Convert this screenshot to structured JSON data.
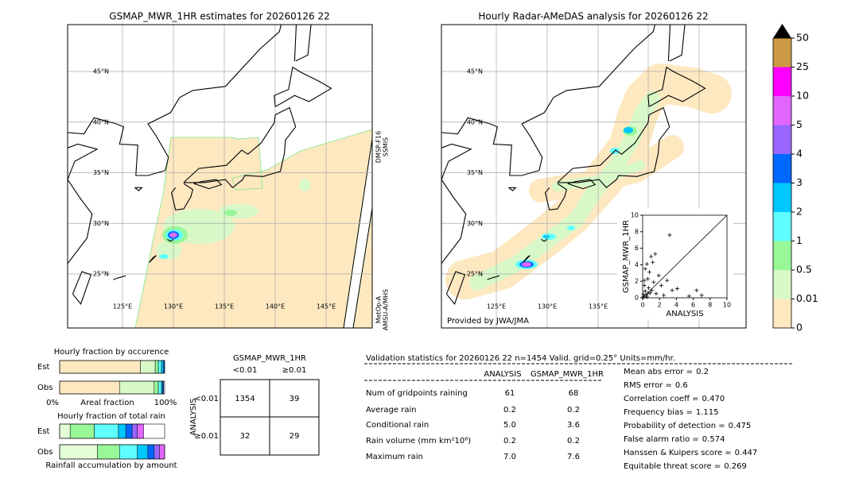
{
  "maps": [
    {
      "title": "GSMAP_MWR_1HR estimates for 20260126 22",
      "lat_labels": [
        "45°N",
        "40°N",
        "35°N",
        "30°N",
        "25°N"
      ],
      "lon_labels": [
        "125°E",
        "130°E",
        "135°E",
        "140°E",
        "145°E"
      ],
      "sensor_labels": [
        [
          "DMSP-F16",
          "SSMIS"
        ],
        [
          "MetOp-A",
          "AMSU-A/MHS"
        ]
      ]
    },
    {
      "title": "Hourly Radar-AMeDAS analysis for 20260126 22",
      "lat_labels": [
        "45°N",
        "40°N",
        "35°N",
        "30°N",
        "25°N"
      ],
      "lon_labels": [
        "125°E",
        "130°E",
        "135°E"
      ],
      "credit": "Provided by JWA/JMA"
    }
  ],
  "colorbar": {
    "levels": [
      0,
      0.01,
      0.5,
      1,
      2,
      3,
      4,
      5,
      10,
      25,
      50
    ],
    "colors": [
      "#fde8c0",
      "#d8f8c8",
      "#98f898",
      "#60ffff",
      "#00c8ff",
      "#0068ff",
      "#9966ff",
      "#e066ff",
      "#ff00ff",
      "#cc9944"
    ],
    "extend_color": "#000000"
  },
  "chart_data": [
    {
      "type": "scatter",
      "xlabel": "ANALYSIS",
      "ylabel": "GSMAP_MWR_1HR",
      "xlim": [
        0,
        10
      ],
      "ylim": [
        0,
        10
      ],
      "xticks": [
        0,
        2,
        4,
        6,
        8,
        10
      ],
      "yticks": [
        0,
        2,
        4,
        6,
        8,
        10
      ],
      "x": [
        3.2,
        1.0,
        1.5,
        0.5,
        1.2,
        0.3,
        0.8,
        1.9,
        0.2,
        0.6,
        1.3,
        2.2,
        2.9,
        4.1,
        3.5,
        6.4,
        7.0,
        5.5,
        1.6,
        2.5,
        0.1,
        0.3,
        0.5,
        0.7,
        0.9,
        0.2,
        0.4,
        1.1,
        0.1,
        0.6
      ],
      "y": [
        7.6,
        5.0,
        5.3,
        4.1,
        4.3,
        3.5,
        3.1,
        2.7,
        2.1,
        2.3,
        1.9,
        1.5,
        2.1,
        1.1,
        0.9,
        0.9,
        0.3,
        0.2,
        0.5,
        0.3,
        0.4,
        0.8,
        0.1,
        1.2,
        0.6,
        1.5,
        0.3,
        0.9,
        0.1,
        0.5
      ]
    },
    {
      "type": "bar",
      "title": "Hourly fraction by occurence",
      "xlabel": "Areal fraction",
      "categories": [
        "Est",
        "Obs"
      ],
      "xlim": [
        0,
        100
      ],
      "xticks": [
        {
          "value": 0,
          "label": "0%"
        },
        {
          "value": 100,
          "label": "100%"
        }
      ],
      "series": [
        {
          "color": "#fde8c0",
          "values": [
            77,
            57
          ]
        },
        {
          "color": "#d8f8c8",
          "values": [
            14,
            33
          ]
        },
        {
          "color": "#98f898",
          "values": [
            3,
            4
          ]
        },
        {
          "color": "#60ffff",
          "values": [
            3,
            3
          ]
        },
        {
          "color": "#00c8ff",
          "values": [
            2,
            1
          ]
        },
        {
          "color": "#0068ff",
          "values": [
            1,
            1
          ]
        }
      ]
    },
    {
      "type": "bar",
      "title": "Hourly fraction of total rain",
      "xlabel": "Rainfall accumulation by amount",
      "categories": [
        "Est",
        "Obs"
      ],
      "xlim": [
        0,
        100
      ],
      "series": [
        {
          "color": "#e4ffd8",
          "values": [
            10,
            36
          ]
        },
        {
          "color": "#98f898",
          "values": [
            23,
            21
          ]
        },
        {
          "color": "#60ffff",
          "values": [
            23,
            17
          ]
        },
        {
          "color": "#00c8ff",
          "values": [
            7,
            10
          ]
        },
        {
          "color": "#0068ff",
          "values": [
            6,
            6
          ]
        },
        {
          "color": "#9966ff",
          "values": [
            5,
            5
          ]
        },
        {
          "color": "#e066ff",
          "values": [
            6,
            5
          ]
        }
      ]
    }
  ],
  "contingency": {
    "title": "GSMAP_MWR_1HR",
    "columns": [
      "<0.01",
      "≥0.01"
    ],
    "row_axis": "ANALYSIS",
    "rows": [
      "<0.01",
      "≥0.01"
    ],
    "cells": [
      [
        "1354",
        "39"
      ],
      [
        "32",
        "29"
      ]
    ]
  },
  "validation": {
    "header": "Validation statistics for 20260126 22  n=1454 Valid. grid=0.25° Units=mm/hr.",
    "columns": [
      "ANALYSIS",
      "GSMAP_MWR_1HR"
    ],
    "rows": [
      [
        "Num of gridpoints raining",
        "61",
        "68"
      ],
      [
        "Average rain",
        "0.2",
        "0.2"
      ],
      [
        "Conditional rain",
        "5.0",
        "3.6"
      ],
      [
        "Rain volume (mm km²10⁶)",
        "0.2",
        "0.2"
      ],
      [
        "Maximum rain",
        "7.0",
        "7.6"
      ]
    ],
    "scores": [
      [
        "Mean abs error =",
        "0.2"
      ],
      [
        "RMS error =",
        "0.6"
      ],
      [
        "Correlation coeff =",
        "0.470"
      ],
      [
        "Frequency bias =",
        "1.115"
      ],
      [
        "Probability of detection =",
        "0.475"
      ],
      [
        "False alarm ratio =",
        "0.574"
      ],
      [
        "Hanssen & Kuipers score =",
        "0.447"
      ],
      [
        "Equitable threat score =",
        "0.269"
      ]
    ]
  }
}
